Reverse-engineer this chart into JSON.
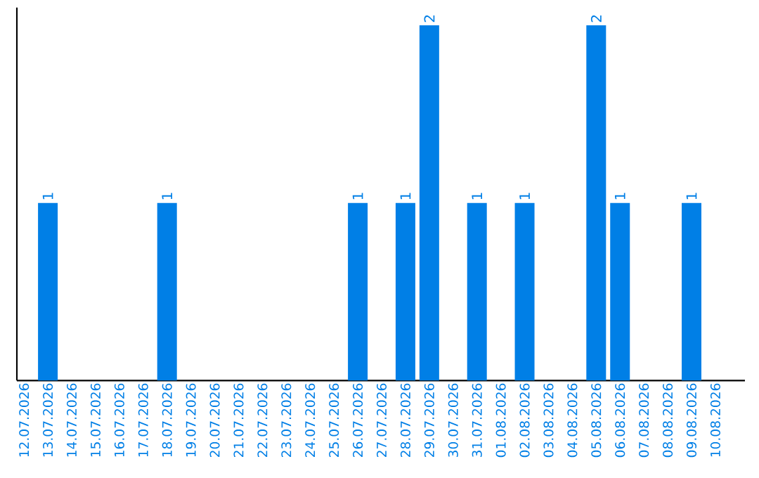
{
  "chart_data": {
    "type": "bar",
    "categories": [
      "12.07.2026",
      "13.07.2026",
      "14.07.2026",
      "15.07.2026",
      "16.07.2026",
      "17.07.2026",
      "18.07.2026",
      "19.07.2026",
      "20.07.2026",
      "21.07.2026",
      "22.07.2026",
      "23.07.2026",
      "24.07.2026",
      "25.07.2026",
      "26.07.2026",
      "27.07.2026",
      "28.07.2026",
      "29.07.2026",
      "30.07.2026",
      "31.07.2026",
      "01.08.2026",
      "02.08.2026",
      "03.08.2026",
      "04.08.2026",
      "05.08.2026",
      "06.08.2026",
      "07.08.2026",
      "08.08.2026",
      "09.08.2026",
      "10.08.2026"
    ],
    "values": [
      0,
      1,
      0,
      0,
      0,
      0,
      1,
      0,
      0,
      0,
      0,
      0,
      0,
      0,
      1,
      0,
      1,
      2,
      0,
      1,
      0,
      1,
      0,
      0,
      2,
      1,
      0,
      0,
      1,
      0
    ],
    "value_labels": [
      null,
      "1",
      null,
      null,
      null,
      null,
      "1",
      null,
      null,
      null,
      null,
      null,
      null,
      null,
      "1",
      null,
      "1",
      "2",
      null,
      "1",
      null,
      "1",
      null,
      null,
      "2",
      "1",
      null,
      null,
      "1",
      null
    ],
    "color": "#007fe6",
    "ylim": [
      0,
      2.1
    ],
    "tick_labels": "x"
  }
}
